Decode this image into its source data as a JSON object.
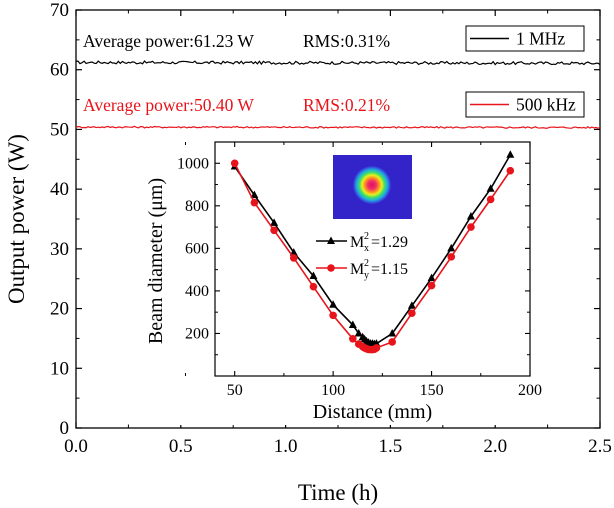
{
  "chart_data": [
    {
      "type": "line",
      "xlabel": "Time (h)",
      "ylabel": "Output power (W)",
      "xlim": [
        0.0,
        2.5
      ],
      "ylim": [
        0,
        70
      ],
      "xticks": [
        "0.0",
        "0.5",
        "1.0",
        "1.5",
        "2.0",
        "2.5"
      ],
      "yticks": [
        "0",
        "10",
        "20",
        "30",
        "40",
        "50",
        "60",
        "70"
      ],
      "grid": false,
      "legend_position": "top-right",
      "series": [
        {
          "name": "1 MHz",
          "color": "#000000",
          "mean": 61.23,
          "rms_percent": 0.31
        },
        {
          "name": "500 kHz",
          "color": "#e8141b",
          "mean": 50.4,
          "rms_percent": 0.21
        }
      ],
      "annotations": [
        {
          "average_text": "Average power:61.23 W",
          "rms_text": "RMS:0.31%",
          "color": "#000000"
        },
        {
          "average_text": "Average power:50.40 W",
          "rms_text": "RMS:0.21%",
          "color": "#e8141b"
        }
      ]
    },
    {
      "type": "line",
      "xlabel": "Distance (mm)",
      "ylabel": "Beam diameter (μm)",
      "xlim": [
        40,
        200
      ],
      "ylim": [
        0,
        1100
      ],
      "xticks": [
        "50",
        "100",
        "150",
        "200"
      ],
      "yticks": [
        "200",
        "400",
        "600",
        "800",
        "1000"
      ],
      "grid": false,
      "legend_position": "center",
      "inset_image": "beam-profile",
      "series": [
        {
          "name": "Mx",
          "legend_base": "M",
          "legend_sup": "2",
          "legend_sub": "x",
          "legend_value": "=1.29",
          "color": "#000000",
          "marker": "triangle",
          "x": [
            50,
            60,
            70,
            80,
            90,
            100,
            110,
            113,
            115,
            116,
            117,
            118,
            119,
            120,
            121,
            122,
            130,
            140,
            150,
            160,
            170,
            180,
            190
          ],
          "y": [
            985,
            850,
            720,
            580,
            470,
            335,
            240,
            200,
            182,
            172,
            163,
            157,
            152,
            152,
            150,
            152,
            200,
            330,
            460,
            600,
            750,
            880,
            1040
          ]
        },
        {
          "name": "My",
          "legend_base": "M",
          "legend_sup": "2",
          "legend_sub": "y",
          "legend_value": "=1.15",
          "color": "#e8141b",
          "marker": "circle",
          "x": [
            50,
            60,
            70,
            80,
            90,
            100,
            110,
            113,
            115,
            116,
            117,
            118,
            119,
            120,
            121,
            122,
            130,
            140,
            150,
            160,
            170,
            180,
            190
          ],
          "y": [
            1000,
            815,
            685,
            555,
            420,
            285,
            175,
            150,
            138,
            132,
            128,
            125,
            124,
            124,
            126,
            132,
            160,
            295,
            425,
            560,
            700,
            830,
            965
          ]
        }
      ]
    }
  ]
}
